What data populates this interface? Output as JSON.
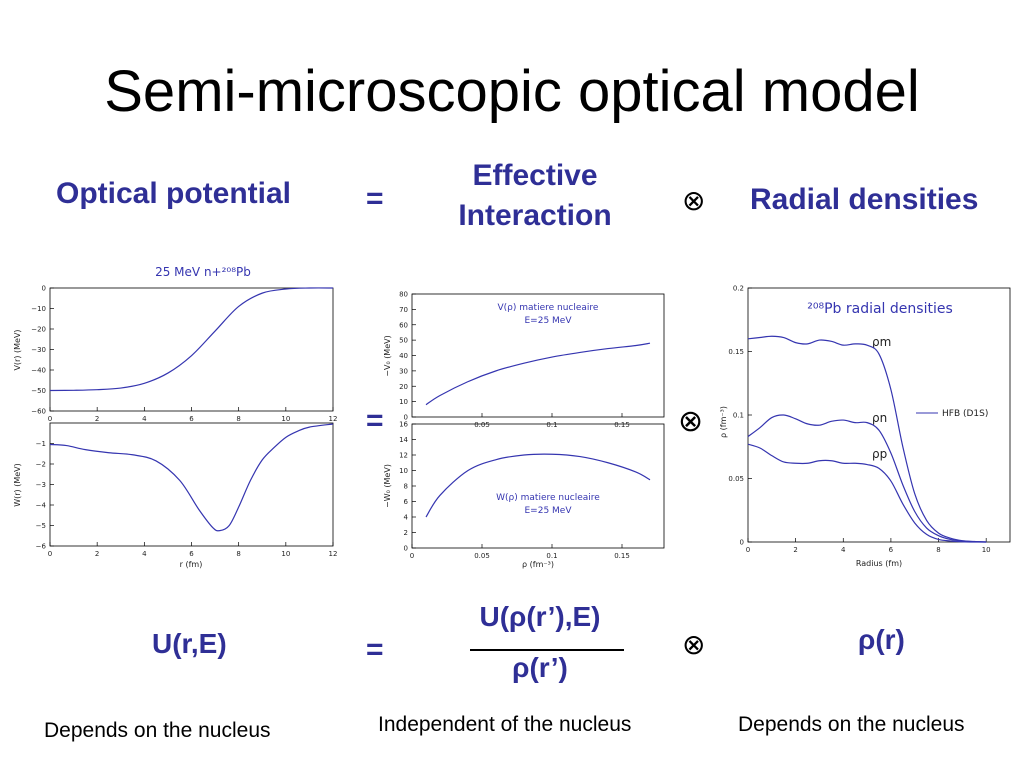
{
  "slide": {
    "title": "Semi-microscopic optical model",
    "header": {
      "optical_potential": "Optical potential",
      "equals": "=",
      "effective_line1": "Effective",
      "effective_line2": "Interaction",
      "otimes": "⊗",
      "radial_densities": "Radial densities"
    },
    "formula": {
      "lhs": "U(r,E)",
      "equals": "=",
      "numerator": "U(ρ(r’),E)",
      "denominator": "ρ(r’)",
      "otimes": "⊗",
      "rho": "ρ(r)"
    },
    "notes": {
      "left": "Depends on the nucleus",
      "middle": "Independent of the nucleus",
      "right": "Depends on the nucleus"
    },
    "mid_equals": "=",
    "mid_otimes": "⊗"
  },
  "chart_data": [
    {
      "type": "line",
      "title": "25 MeV n+²⁰⁸Pb",
      "xlabel": "",
      "ylabel": "V(r) (MeV)",
      "xlim": [
        0,
        12
      ],
      "ylim": [
        -60,
        0
      ],
      "xticks": [
        "0",
        "2",
        "4",
        "6",
        "8",
        "10",
        "12"
      ],
      "yticks": [
        "0",
        "−10",
        "−20",
        "−30",
        "−40",
        "−50",
        "−60"
      ],
      "series": [
        {
          "x": [
            0,
            1,
            2,
            3,
            4,
            5,
            6,
            7,
            8,
            9,
            10,
            11,
            12
          ],
          "y": [
            -50,
            -49.9,
            -49.6,
            -48.8,
            -46.5,
            -41.5,
            -33,
            -21,
            -9,
            -2.5,
            -0.5,
            0,
            0
          ]
        }
      ]
    },
    {
      "type": "line",
      "title": "",
      "xlabel": "r (fm)",
      "ylabel": "W(r) (MeV)",
      "xlim": [
        0,
        12
      ],
      "ylim": [
        -6,
        0
      ],
      "xticks": [
        "0",
        "2",
        "4",
        "6",
        "8",
        "10",
        "12"
      ],
      "yticks": [
        "−1",
        "−2",
        "−3",
        "−4",
        "−5",
        "−6"
      ],
      "series": [
        {
          "x": [
            0,
            0.7,
            1.5,
            2.5,
            3.5,
            4.5,
            5.5,
            6.3,
            6.9,
            7.2,
            7.6,
            8,
            8.5,
            9,
            9.5,
            10,
            10.5,
            11,
            12
          ],
          "y": [
            -1.05,
            -1.1,
            -1.3,
            -1.45,
            -1.55,
            -1.85,
            -2.8,
            -4.2,
            -5.1,
            -5.25,
            -5.0,
            -4.1,
            -2.8,
            -1.8,
            -1.2,
            -0.7,
            -0.4,
            -0.2,
            -0.05
          ]
        }
      ]
    },
    {
      "type": "line",
      "title": "",
      "xlabel": "",
      "ylabel": "−V₀ (MeV)",
      "legend_text": [
        "V(ρ) matiere nucleaire",
        "E=25 MeV"
      ],
      "xlim": [
        0,
        0.18
      ],
      "ylim": [
        0,
        80
      ],
      "xticks": [
        "0.05",
        "0.1",
        "0.15"
      ],
      "yticks": [
        "0",
        "10",
        "20",
        "30",
        "40",
        "50",
        "60",
        "70",
        "80"
      ],
      "series": [
        {
          "x": [
            0.01,
            0.02,
            0.04,
            0.06,
            0.08,
            0.1,
            0.12,
            0.14,
            0.16,
            0.17
          ],
          "y": [
            8,
            14,
            23,
            30,
            35,
            39,
            42,
            44.5,
            46.5,
            48
          ]
        }
      ]
    },
    {
      "type": "line",
      "title": "",
      "xlabel": "ρ (fm⁻³)",
      "ylabel": "−W₀ (MeV)",
      "legend_text": [
        "W(ρ) matiere nucleaire",
        "E=25 MeV"
      ],
      "xlim": [
        0,
        0.18
      ],
      "ylim": [
        0,
        16
      ],
      "xticks": [
        "0",
        "0.05",
        "0.1",
        "0.15"
      ],
      "yticks": [
        "0",
        "2",
        "4",
        "6",
        "8",
        "10",
        "12",
        "14",
        "16"
      ],
      "series": [
        {
          "x": [
            0.01,
            0.02,
            0.04,
            0.06,
            0.08,
            0.1,
            0.12,
            0.14,
            0.16,
            0.17
          ],
          "y": [
            4,
            6.8,
            10,
            11.4,
            12,
            12.1,
            11.8,
            11,
            9.8,
            8.8
          ]
        }
      ]
    },
    {
      "type": "line",
      "title": "²⁰⁸Pb radial densities",
      "xlabel": "Radius (fm)",
      "ylabel": "ρ (fm⁻³)",
      "legend": [
        "HFB (D1S)"
      ],
      "xlim": [
        0,
        11
      ],
      "ylim": [
        0,
        0.2
      ],
      "xticks": [
        "0",
        "2",
        "4",
        "6",
        "8",
        "10"
      ],
      "yticks": [
        "0",
        "0.05",
        "0.1",
        "0.15",
        "0.2"
      ],
      "series": [
        {
          "name": "ρm",
          "x": [
            0,
            0.5,
            1,
            1.5,
            2,
            2.5,
            3,
            3.5,
            4,
            4.5,
            5,
            5.5,
            6,
            6.5,
            7,
            7.5,
            8,
            8.5,
            9,
            9.5,
            10
          ],
          "y": [
            0.16,
            0.161,
            0.162,
            0.161,
            0.157,
            0.156,
            0.159,
            0.158,
            0.155,
            0.156,
            0.155,
            0.148,
            0.12,
            0.075,
            0.038,
            0.017,
            0.007,
            0.003,
            0.001,
            0.0004,
            0
          ]
        },
        {
          "name": "ρn",
          "x": [
            0,
            0.5,
            1,
            1.5,
            2,
            2.5,
            3,
            3.5,
            4,
            4.5,
            5,
            5.5,
            6,
            6.5,
            7,
            7.5,
            8,
            8.5,
            9,
            9.5,
            10
          ],
          "y": [
            0.083,
            0.09,
            0.098,
            0.1,
            0.097,
            0.093,
            0.092,
            0.095,
            0.096,
            0.094,
            0.094,
            0.088,
            0.07,
            0.045,
            0.024,
            0.011,
            0.005,
            0.002,
            0.0008,
            0.0002,
            0
          ]
        },
        {
          "name": "ρp",
          "x": [
            0,
            0.5,
            1,
            1.5,
            2,
            2.5,
            3,
            3.5,
            4,
            4.5,
            5,
            5.5,
            6,
            6.5,
            7,
            7.5,
            8,
            8.5,
            9,
            9.5,
            10
          ],
          "y": [
            0.077,
            0.074,
            0.068,
            0.063,
            0.062,
            0.062,
            0.064,
            0.064,
            0.062,
            0.062,
            0.061,
            0.058,
            0.048,
            0.03,
            0.015,
            0.006,
            0.002,
            0.0008,
            0.0002,
            0,
            0
          ]
        }
      ]
    }
  ]
}
